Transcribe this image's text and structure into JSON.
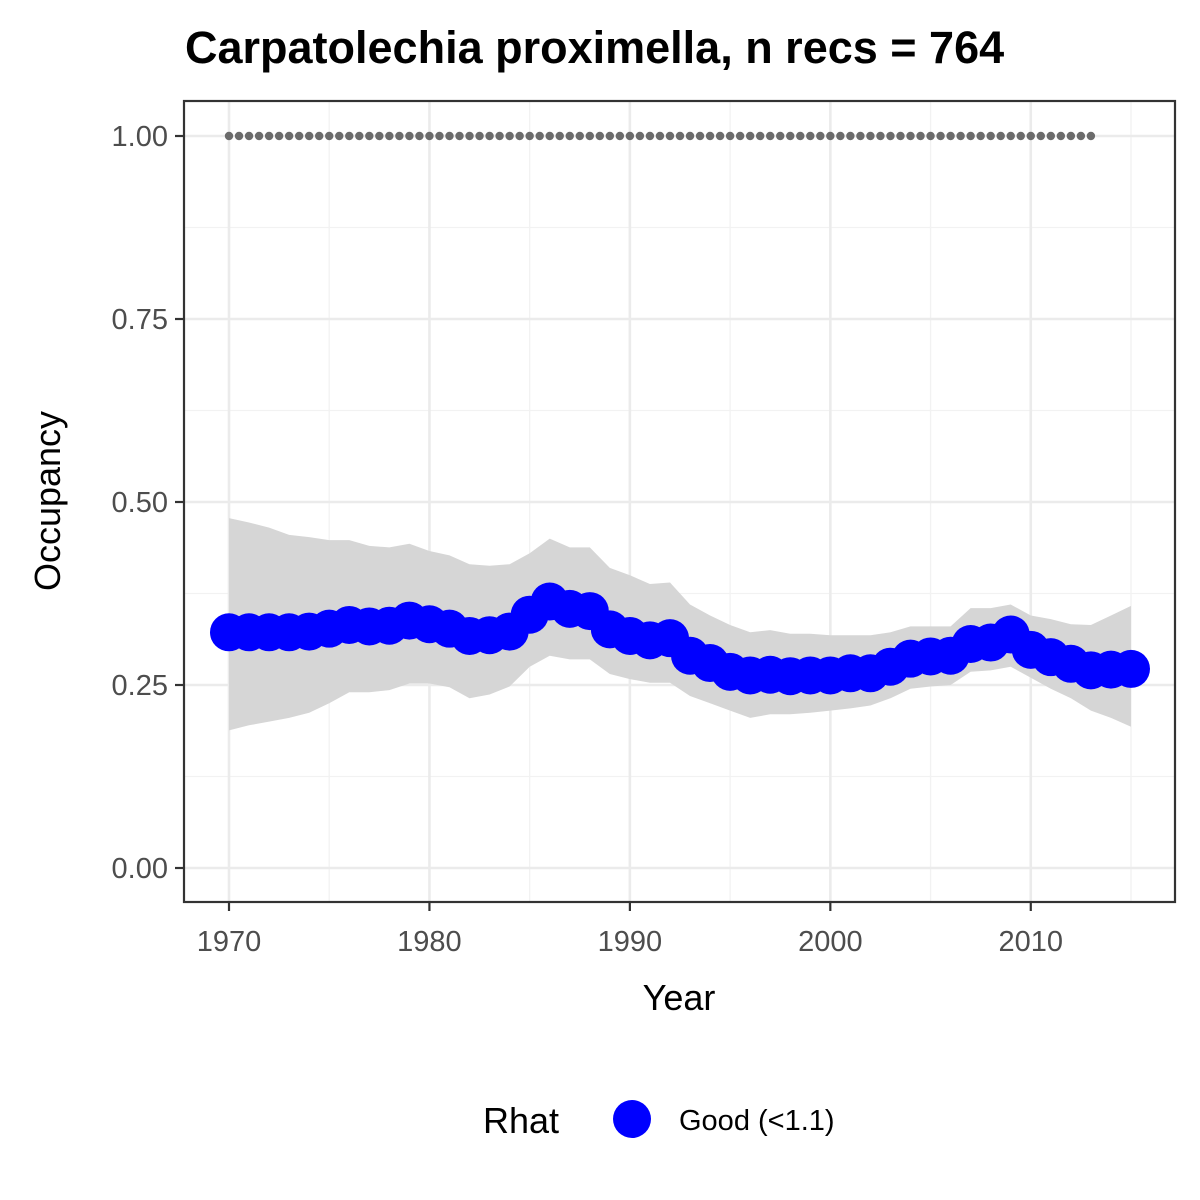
{
  "chart_data": {
    "type": "line",
    "title": "Carpatolechia proximella, n recs = 764",
    "xlabel": "Year",
    "ylabel": "Occupancy",
    "xlim": [
      1967.8,
      2017.2
    ],
    "ylim": [
      -0.05,
      1.05
    ],
    "x_ticks": [
      1970,
      1980,
      1990,
      2000,
      2010
    ],
    "x_tick_labels": [
      "1970",
      "1980",
      "1990",
      "2000",
      "2010"
    ],
    "y_ticks": [
      0,
      0.25,
      0.5,
      0.75,
      1.0
    ],
    "y_tick_labels": [
      "0.00",
      "0.25",
      "0.50",
      "0.75",
      "1.00"
    ],
    "grid": true,
    "legend": {
      "title": "Rhat",
      "position": "bottom",
      "entries": [
        {
          "label": "Good (<1.1)",
          "color": "#0000ff"
        }
      ]
    },
    "series": [
      {
        "role": "occupancy-estimate",
        "style": "points",
        "color": "#0000ff",
        "x": [
          1970,
          1971,
          1972,
          1973,
          1974,
          1975,
          1976,
          1977,
          1978,
          1979,
          1980,
          1981,
          1982,
          1983,
          1984,
          1985,
          1986,
          1987,
          1988,
          1989,
          1990,
          1991,
          1992,
          1993,
          1994,
          1995,
          1996,
          1997,
          1998,
          1999,
          2000,
          2001,
          2002,
          2003,
          2004,
          2005,
          2006,
          2007,
          2008,
          2009,
          2010,
          2011,
          2012,
          2013,
          2014,
          2015
        ],
        "y": [
          0.322,
          0.322,
          0.322,
          0.322,
          0.323,
          0.327,
          0.332,
          0.33,
          0.331,
          0.338,
          0.333,
          0.327,
          0.317,
          0.318,
          0.323,
          0.346,
          0.364,
          0.354,
          0.351,
          0.326,
          0.317,
          0.311,
          0.314,
          0.29,
          0.28,
          0.268,
          0.263,
          0.264,
          0.262,
          0.263,
          0.263,
          0.266,
          0.266,
          0.275,
          0.286,
          0.289,
          0.29,
          0.306,
          0.308,
          0.319,
          0.298,
          0.288,
          0.279,
          0.27,
          0.271,
          0.272
        ]
      },
      {
        "role": "credible-interval",
        "style": "ribbon",
        "color": "#d6d6d6",
        "x": [
          1970,
          1971,
          1972,
          1973,
          1974,
          1975,
          1976,
          1977,
          1978,
          1979,
          1980,
          1981,
          1982,
          1983,
          1984,
          1985,
          1986,
          1987,
          1988,
          1989,
          1990,
          1991,
          1992,
          1993,
          1994,
          1995,
          1996,
          1997,
          1998,
          1999,
          2000,
          2001,
          2002,
          2003,
          2004,
          2005,
          2006,
          2007,
          2008,
          2009,
          2010,
          2011,
          2012,
          2013,
          2014,
          2015
        ],
        "lower": [
          0.188,
          0.195,
          0.2,
          0.205,
          0.212,
          0.225,
          0.24,
          0.24,
          0.243,
          0.252,
          0.252,
          0.247,
          0.232,
          0.237,
          0.248,
          0.275,
          0.29,
          0.285,
          0.285,
          0.265,
          0.258,
          0.253,
          0.253,
          0.235,
          0.225,
          0.215,
          0.205,
          0.21,
          0.21,
          0.212,
          0.215,
          0.218,
          0.222,
          0.232,
          0.245,
          0.248,
          0.25,
          0.268,
          0.27,
          0.275,
          0.26,
          0.245,
          0.232,
          0.215,
          0.205,
          0.193
        ],
        "upper": [
          0.478,
          0.472,
          0.465,
          0.455,
          0.452,
          0.448,
          0.448,
          0.44,
          0.438,
          0.443,
          0.433,
          0.427,
          0.415,
          0.413,
          0.415,
          0.43,
          0.45,
          0.438,
          0.438,
          0.41,
          0.4,
          0.388,
          0.39,
          0.36,
          0.345,
          0.332,
          0.322,
          0.325,
          0.32,
          0.32,
          0.318,
          0.318,
          0.318,
          0.322,
          0.33,
          0.33,
          0.33,
          0.355,
          0.355,
          0.36,
          0.345,
          0.34,
          0.333,
          0.332,
          0.345,
          0.358
        ]
      },
      {
        "role": "reference-line",
        "style": "dotted",
        "color": "#6b6b6b",
        "x": [
          1970,
          1971,
          1972,
          1973,
          1974,
          1975,
          1976,
          1977,
          1978,
          1979,
          1980,
          1981,
          1982,
          1983,
          1984,
          1985,
          1986,
          1987,
          1988,
          1989,
          1990,
          1991,
          1992,
          1993,
          1994,
          1995,
          1996,
          1997,
          1998,
          1999,
          2000,
          2001,
          2002,
          2003,
          2004,
          2005,
          2006,
          2007,
          2008,
          2009,
          2010,
          2011,
          2012,
          2013
        ],
        "y": [
          1,
          1,
          1,
          1,
          1,
          1,
          1,
          1,
          1,
          1,
          1,
          1,
          1,
          1,
          1,
          1,
          1,
          1,
          1,
          1,
          1,
          1,
          1,
          1,
          1,
          1,
          1,
          1,
          1,
          1,
          1,
          1,
          1,
          1,
          1,
          1,
          1,
          1,
          1,
          1,
          1,
          1,
          1,
          1
        ]
      }
    ]
  }
}
